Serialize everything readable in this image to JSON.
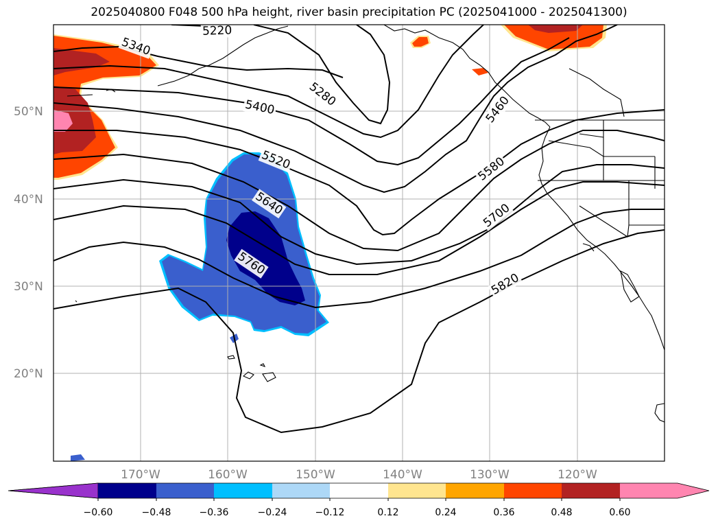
{
  "title": "2025040800 F048 500 hPa height, river basin precipitation PC (2025041000 - 2025041300)",
  "map": {
    "lat_ticks": [
      "50°N",
      "40°N",
      "30°N",
      "20°N"
    ],
    "lon_ticks": [
      "170°W",
      "160°W",
      "150°W",
      "140°W",
      "130°W",
      "120°W"
    ],
    "contour_labels": [
      "5220",
      "5340",
      "5280",
      "5400",
      "5460",
      "5520",
      "5580",
      "5640",
      "5700",
      "5760",
      "5820"
    ]
  },
  "colorbar": {
    "ticks": [
      "−0.60",
      "−0.48",
      "−0.36",
      "−0.24",
      "−0.12",
      "0.12",
      "0.24",
      "0.36",
      "0.48",
      "0.60"
    ],
    "colors": [
      "#9932cc",
      "#00008b",
      "#3a5fcd",
      "#00bfff",
      "#add8f7",
      "#ffffff",
      "#ffe58f",
      "#ffa500",
      "#ff4500",
      "#b22222",
      "#ff85b0",
      "#ff85b0"
    ]
  }
}
